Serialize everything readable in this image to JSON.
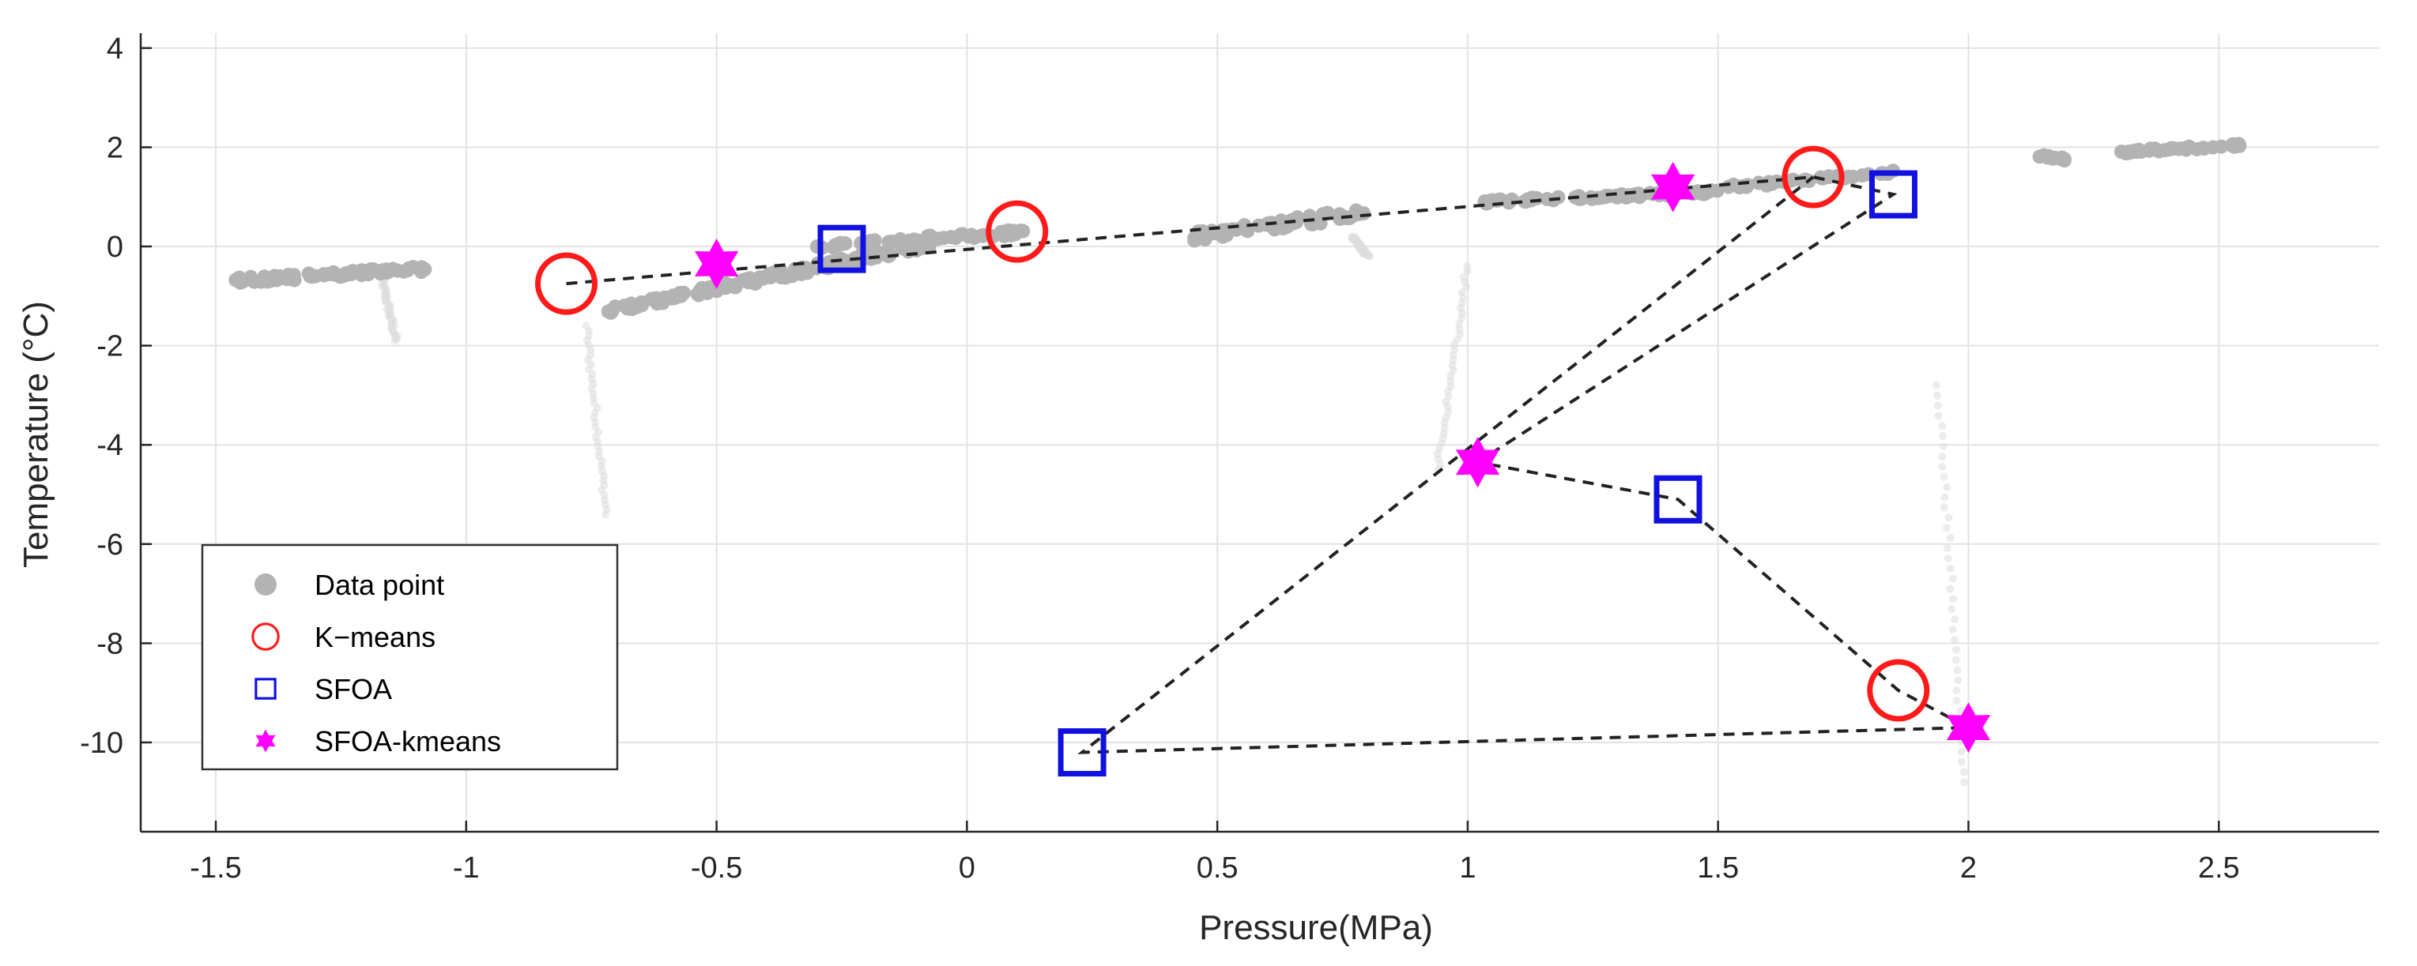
{
  "chart_data": {
    "type": "scatter",
    "title": "",
    "xlabel": "Pressure(MPa)",
    "ylabel": "Temperature (°C)",
    "xlim": [
      -1.65,
      2.82
    ],
    "ylim": [
      -11.8,
      4.3
    ],
    "xticks": [
      -1.5,
      -1,
      -0.5,
      0,
      0.5,
      1,
      1.5,
      2,
      2.5
    ],
    "xtick_labels": [
      "-1.5",
      "-1",
      "-0.5",
      "0",
      "0.5",
      "1",
      "1.5",
      "2",
      "2.5"
    ],
    "yticks": [
      -10,
      -8,
      -6,
      -4,
      -2,
      0,
      2,
      4
    ],
    "ytick_labels": [
      "-10",
      "-8",
      "-6",
      "-4",
      "-2",
      "0",
      "2",
      "4"
    ],
    "grid": true,
    "legend_position": "lower-left",
    "colors": {
      "data_point": "#b3b3b3",
      "kmeans": "#ff1a1a",
      "sfoa": "#1010e0",
      "sfoa_kmeans": "#ff00ff",
      "route": "#222222"
    },
    "legend": [
      {
        "label": "Data point",
        "marker": "dot",
        "color": "#b3b3b3"
      },
      {
        "label": "K−means",
        "marker": "circle",
        "color": "#ff1a1a"
      },
      {
        "label": "SFOA",
        "marker": "square",
        "color": "#1010e0"
      },
      {
        "label": "SFOA-kmeans",
        "marker": "star",
        "color": "#ff00ff"
      }
    ],
    "data_clusters": [
      {
        "x_range": [
          -1.47,
          -1.08
        ],
        "y_start": -0.7,
        "y_end": -0.45,
        "spread": 0.12,
        "count": 70
      },
      {
        "x_range": [
          -0.72,
          -0.05
        ],
        "y_start": -1.3,
        "y_end": 0.1,
        "spread": 0.15,
        "count": 140
      },
      {
        "x_range": [
          -0.3,
          0.12
        ],
        "y_start": 0.0,
        "y_end": 0.3,
        "spread": 0.12,
        "count": 50
      },
      {
        "x_range": [
          0.45,
          0.8
        ],
        "y_start": 0.2,
        "y_end": 0.7,
        "spread": 0.2,
        "count": 70
      },
      {
        "x_range": [
          1.03,
          1.5
        ],
        "y_start": 0.9,
        "y_end": 1.1,
        "spread": 0.08,
        "count": 70
      },
      {
        "x_range": [
          1.52,
          1.86
        ],
        "y_start": 1.2,
        "y_end": 1.5,
        "spread": 0.08,
        "count": 40
      },
      {
        "x_range": [
          2.13,
          2.2
        ],
        "y_start": 1.85,
        "y_end": 1.75,
        "spread": 0.06,
        "count": 12
      },
      {
        "x_range": [
          2.3,
          2.55
        ],
        "y_start": 1.9,
        "y_end": 2.05,
        "spread": 0.07,
        "count": 40
      }
    ],
    "faint_trails": [
      {
        "x": [
          -1.17,
          -1.14
        ],
        "y": [
          -0.6,
          -1.9
        ]
      },
      {
        "x": [
          -0.76,
          -0.72
        ],
        "y": [
          -1.6,
          -5.4
        ]
      },
      {
        "x": [
          0.77,
          0.8
        ],
        "y": [
          0.2,
          -0.2
        ]
      },
      {
        "x": [
          0.94,
          1.0
        ],
        "y": [
          -4.5,
          -0.4
        ]
      },
      {
        "x": [
          1.94,
          1.99
        ],
        "y": [
          -2.8,
          -10.8
        ]
      }
    ],
    "series": [
      {
        "name": "K−means",
        "marker": "circle",
        "x": [
          -0.8,
          0.1,
          1.69,
          1.86
        ],
        "y": [
          -0.75,
          0.3,
          1.4,
          -8.95
        ]
      },
      {
        "name": "SFOA",
        "marker": "square",
        "x": [
          -0.25,
          1.85,
          0.23,
          1.42
        ],
        "y": [
          -0.05,
          1.05,
          -10.2,
          -5.1
        ]
      },
      {
        "name": "SFOA-kmeans",
        "marker": "star",
        "x": [
          -0.5,
          1.41,
          1.02,
          2.0
        ],
        "y": [
          -0.35,
          1.2,
          -4.35,
          -9.7
        ]
      }
    ],
    "route": {
      "style": "dashed",
      "x": [
        -0.8,
        1.69,
        1.85,
        1.02,
        1.42,
        1.86,
        2.0,
        0.23,
        1.69
      ],
      "y": [
        -0.75,
        1.4,
        1.05,
        -4.35,
        -5.1,
        -8.95,
        -9.7,
        -10.2,
        1.4
      ]
    }
  }
}
